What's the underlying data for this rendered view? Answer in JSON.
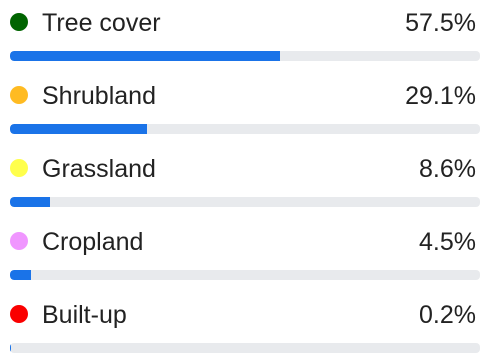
{
  "chart_data": {
    "type": "bar",
    "orientation": "horizontal",
    "categories": [
      "Tree cover",
      "Shrubland",
      "Grassland",
      "Cropland",
      "Built-up"
    ],
    "values": [
      57.5,
      29.1,
      8.6,
      4.5,
      0.2
    ],
    "value_labels": [
      "57.5%",
      "29.1%",
      "8.6%",
      "4.5%",
      "0.2%"
    ],
    "category_colors": [
      "#006400",
      "#ffbb22",
      "#ffff4c",
      "#f096ff",
      "#fa0000"
    ],
    "bar_color": "#1a73e8",
    "track_color": "#e8eaed",
    "xlim": [
      0,
      100
    ],
    "grid": false,
    "legend": "none"
  }
}
